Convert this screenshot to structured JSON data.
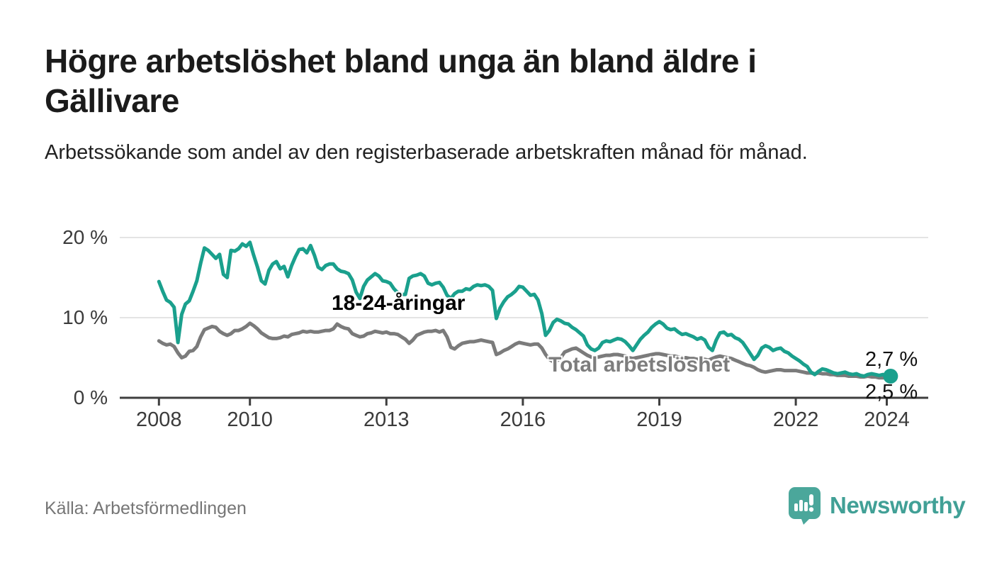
{
  "page": {
    "title": "Högre arbetslöshet bland unga än bland äldre i Gällivare",
    "subtitle": "Arbetssökande som andel av den registerbaserade arbetskraften månad för månad.",
    "source": "Källa: Arbetsförmedlingen",
    "brand": {
      "name": "Newsworthy",
      "icon": "speech-bubble-bar-chart-icon"
    }
  },
  "colors": {
    "youth_line": "#1aa08d",
    "total_line": "#7b7b7b",
    "axis_line": "#3f3f3f",
    "axis_text": "#3b3b3b",
    "gridline": "#dbdbdb",
    "brand_teal": "#41a096",
    "end_label_text": "#111111"
  },
  "chart_data": {
    "type": "line",
    "unit": "%",
    "start_year": 2008,
    "points_per_year": 12,
    "x_ticks": [
      {
        "year": 2008,
        "label": "2008"
      },
      {
        "year": 2010,
        "label": "2010"
      },
      {
        "year": 2013,
        "label": "2013"
      },
      {
        "year": 2016,
        "label": "2016"
      },
      {
        "year": 2019,
        "label": "2019"
      },
      {
        "year": 2022,
        "label": "2022"
      },
      {
        "year": 2024,
        "label": "2024"
      }
    ],
    "y_ticks": [
      {
        "value": 0,
        "label": "0 %"
      },
      {
        "value": 10,
        "label": "10 %"
      },
      {
        "value": 20,
        "label": "20 %"
      }
    ],
    "ylim": [
      0,
      21
    ],
    "grid": "horizontal-only",
    "legend": "inline-labels",
    "series": [
      {
        "name": "18-24-åringar",
        "color": "#1aa08d",
        "end_label": "2,7 %",
        "end_value": 2.7,
        "values": [
          14.5,
          13.3,
          12.2,
          11.9,
          11.3,
          6.9,
          10.4,
          11.7,
          12.1,
          13.3,
          14.6,
          16.8,
          18.7,
          18.4,
          17.9,
          17.4,
          17.9,
          15.4,
          15.0,
          18.4,
          18.3,
          18.6,
          19.2,
          18.9,
          19.4,
          17.8,
          16.3,
          14.6,
          14.2,
          15.9,
          16.7,
          17.0,
          16.1,
          16.4,
          15.1,
          16.5,
          17.6,
          18.5,
          18.6,
          18.1,
          19.0,
          17.8,
          16.3,
          16.0,
          16.5,
          16.7,
          16.7,
          16.1,
          15.8,
          15.7,
          15.5,
          14.7,
          13.2,
          12.4,
          13.9,
          14.7,
          15.1,
          15.5,
          15.2,
          14.6,
          14.5,
          14.3,
          13.6,
          13.1,
          12.9,
          12.9,
          14.9,
          15.2,
          15.3,
          15.5,
          15.2,
          14.3,
          14.1,
          14.3,
          14.4,
          13.8,
          12.8,
          12.4,
          13.0,
          13.3,
          13.3,
          13.6,
          13.5,
          13.9,
          14.1,
          14.0,
          14.1,
          13.9,
          13.4,
          9.9,
          11.2,
          12.0,
          12.6,
          12.9,
          13.3,
          13.9,
          13.8,
          13.3,
          12.8,
          12.9,
          12.2,
          10.5,
          7.8,
          8.4,
          9.4,
          9.8,
          9.6,
          9.3,
          9.2,
          8.8,
          8.5,
          8.1,
          7.7,
          6.6,
          6.1,
          5.9,
          6.2,
          6.9,
          7.1,
          7.0,
          7.2,
          7.4,
          7.3,
          7.0,
          6.5,
          5.9,
          6.6,
          7.3,
          7.8,
          8.2,
          8.8,
          9.2,
          9.5,
          9.2,
          8.7,
          8.5,
          8.6,
          8.2,
          7.9,
          8.0,
          7.8,
          7.6,
          7.3,
          7.5,
          7.2,
          6.3,
          5.9,
          7.2,
          8.1,
          8.2,
          7.8,
          7.9,
          7.5,
          7.3,
          6.9,
          6.2,
          5.5,
          4.8,
          5.3,
          6.2,
          6.5,
          6.3,
          5.9,
          6.1,
          6.2,
          5.8,
          5.6,
          5.2,
          4.9,
          4.6,
          4.2,
          3.9,
          3.2,
          2.9,
          3.3,
          3.6,
          3.5,
          3.3,
          3.1,
          3.0,
          3.1,
          3.2,
          3.0,
          2.9,
          3.0,
          2.8,
          2.7,
          2.9,
          3.0,
          2.9,
          2.8,
          2.9,
          2.8,
          2.7
        ]
      },
      {
        "name": "Total arbetslöshet",
        "color": "#7b7b7b",
        "end_label": "2,5 %",
        "end_value": 2.5,
        "values": [
          7.1,
          6.8,
          6.6,
          6.7,
          6.4,
          5.6,
          5.0,
          5.2,
          5.8,
          5.9,
          6.4,
          7.6,
          8.5,
          8.7,
          8.9,
          8.8,
          8.3,
          8.0,
          7.8,
          8.0,
          8.4,
          8.4,
          8.6,
          8.9,
          9.3,
          9.0,
          8.6,
          8.1,
          7.8,
          7.5,
          7.4,
          7.4,
          7.5,
          7.7,
          7.6,
          7.9,
          8.0,
          8.1,
          8.3,
          8.2,
          8.3,
          8.2,
          8.2,
          8.3,
          8.4,
          8.4,
          8.6,
          9.2,
          8.9,
          8.7,
          8.6,
          8.0,
          7.8,
          7.6,
          7.7,
          8.0,
          8.1,
          8.3,
          8.2,
          8.1,
          8.2,
          8.0,
          8.0,
          7.9,
          7.6,
          7.3,
          6.8,
          7.2,
          7.8,
          8.0,
          8.2,
          8.3,
          8.3,
          8.4,
          8.2,
          8.4,
          7.6,
          6.3,
          6.1,
          6.5,
          6.8,
          6.9,
          7.0,
          7.0,
          7.1,
          7.2,
          7.1,
          7.0,
          6.9,
          5.4,
          5.6,
          5.9,
          6.1,
          6.4,
          6.7,
          6.9,
          6.8,
          6.7,
          6.6,
          6.7,
          6.7,
          6.2,
          5.4,
          4.8,
          4.5,
          4.6,
          5.0,
          5.7,
          5.9,
          6.1,
          6.2,
          5.9,
          5.6,
          5.3,
          5.1,
          5.0,
          5.1,
          5.2,
          5.3,
          5.3,
          5.4,
          5.4,
          5.3,
          5.2,
          5.0,
          4.9,
          5.0,
          5.1,
          5.2,
          5.3,
          5.4,
          5.5,
          5.5,
          5.4,
          5.3,
          5.2,
          5.2,
          5.1,
          5.0,
          5.0,
          4.9,
          4.9,
          4.8,
          4.8,
          4.8,
          4.7,
          4.9,
          5.1,
          5.2,
          5.1,
          5.0,
          4.9,
          4.7,
          4.5,
          4.3,
          4.1,
          4.0,
          3.8,
          3.5,
          3.3,
          3.2,
          3.3,
          3.4,
          3.5,
          3.5,
          3.4,
          3.4,
          3.4,
          3.4,
          3.3,
          3.2,
          3.1,
          3.1,
          3.0,
          3.1,
          3.0,
          3.0,
          2.9,
          2.9,
          2.8,
          2.8,
          2.8,
          2.7,
          2.7,
          2.7,
          2.6,
          2.6,
          2.7,
          2.6,
          2.6,
          2.5,
          2.5,
          2.5,
          2.5
        ]
      }
    ]
  }
}
